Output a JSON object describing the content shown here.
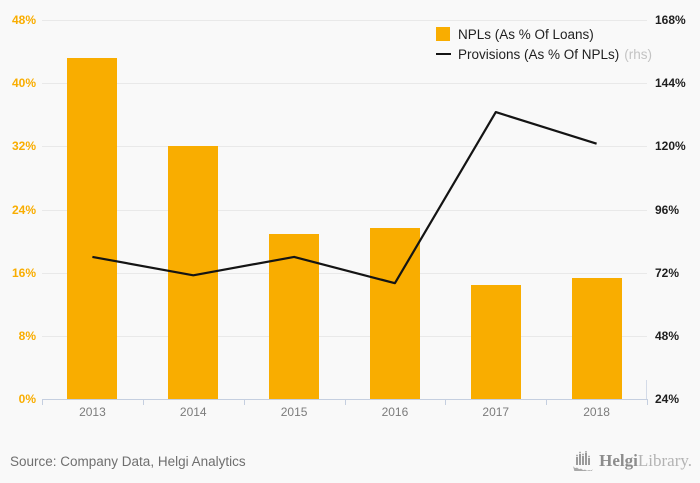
{
  "chart_data": {
    "type": "bar",
    "categories": [
      "2013",
      "2014",
      "2015",
      "2016",
      "2017",
      "2018"
    ],
    "series": [
      {
        "name": "NPLs (As % Of Loans)",
        "type": "bar",
        "axis": "left",
        "color": "#F9AD00",
        "values": [
          43.2,
          32.1,
          20.9,
          21.7,
          14.4,
          15.3
        ]
      },
      {
        "name": "Provisions (As % Of NPLs)",
        "rhs_note": "(rhs)",
        "type": "line",
        "axis": "right",
        "color": "#141414",
        "values": [
          78,
          71,
          78,
          68,
          133,
          121
        ]
      }
    ],
    "title": "",
    "xlabel": "",
    "ylabel": "",
    "left_axis": {
      "min": 0,
      "max": 48,
      "step": 8,
      "ticks": [
        "0%",
        "8%",
        "16%",
        "24%",
        "32%",
        "40%",
        "48%"
      ],
      "label_color": "#F9AD00"
    },
    "right_axis": {
      "min": 24,
      "max": 168,
      "step": 24,
      "ticks": [
        "24%",
        "48%",
        "72%",
        "96%",
        "120%",
        "144%",
        "168%"
      ],
      "label_color": "#1f1f1f"
    },
    "grid": true,
    "legend_position": "top-right"
  },
  "ui_colors": {
    "background": "#f9f9f9",
    "gridline": "#e9e9e9",
    "axis_line": "#c5cfe0",
    "year_label": "#7c7c7c"
  },
  "footer": {
    "source": "Source: Company Data, Helgi Analytics",
    "logo_bold": "Helgi",
    "logo_light": "Library."
  }
}
